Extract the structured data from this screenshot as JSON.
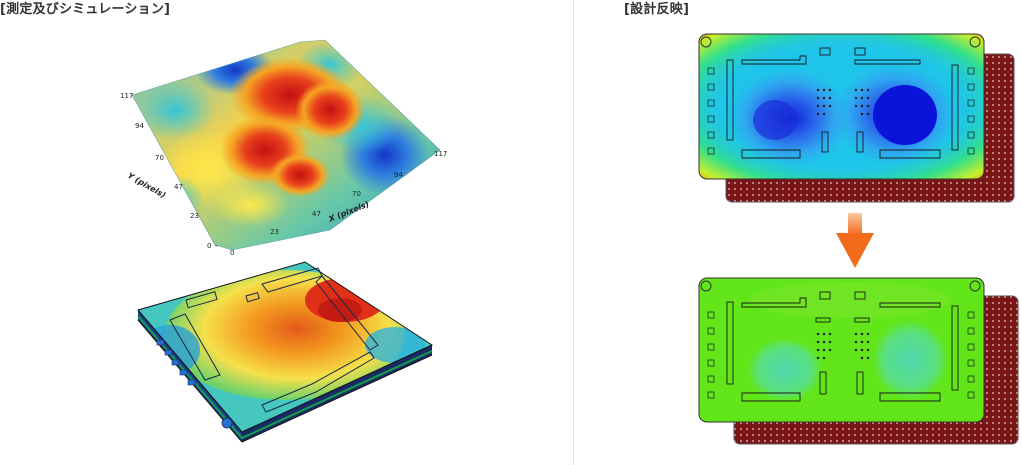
{
  "header": {
    "left_title": "[測定及びシミュレーション]",
    "right_title": "[設計反映]"
  },
  "surface_plot": {
    "y_axis_title": "Y (pixels)",
    "x_axis_title": "X (pixels)",
    "y_ticks": [
      "0",
      "23",
      "47",
      "70",
      "94",
      "117"
    ],
    "x_ticks": [
      "0",
      "23",
      "47",
      "70",
      "94",
      "117"
    ]
  },
  "colors": {
    "hot": "#d7191c",
    "warm": "#f39c12",
    "mid": "#ffe34d",
    "cool": "#3fbfcf",
    "cold": "#1f4fd0",
    "pcb": "#7a1616",
    "arrow": "#f26a1b"
  }
}
